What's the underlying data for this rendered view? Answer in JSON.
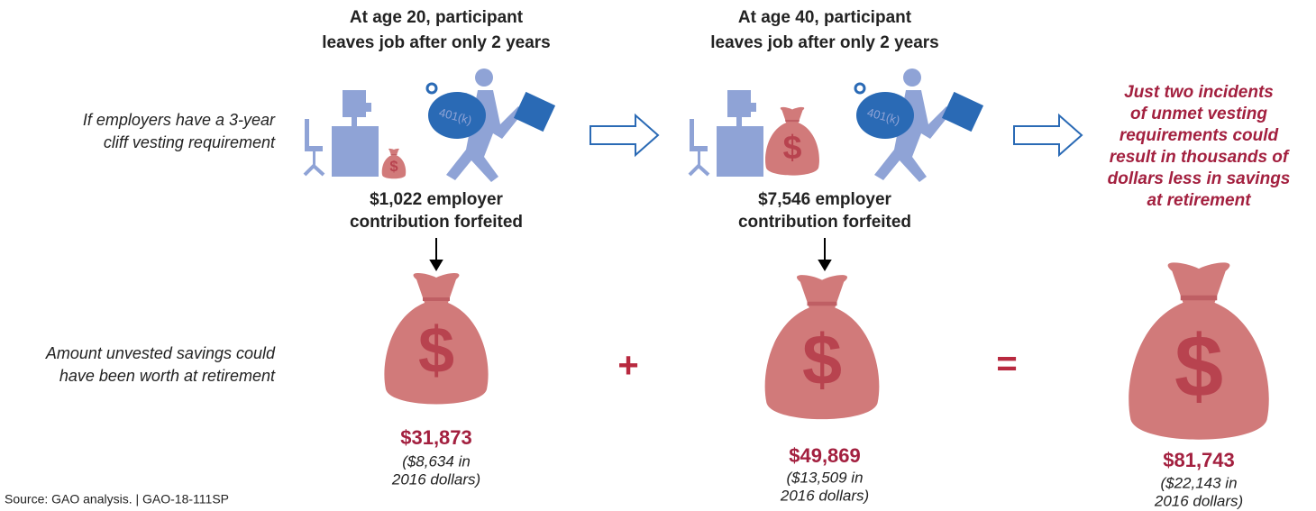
{
  "scenarios": [
    {
      "heading": [
        "At age 20, participant",
        "leaves job after only 2 years"
      ],
      "forfeited": [
        "$1,022 employer",
        "contribution forfeited"
      ],
      "worth": "$31,873",
      "worth_2016": [
        "($8,634 in",
        "2016 dollars)"
      ]
    },
    {
      "heading": [
        "At age 40, participant",
        "leaves job after only 2 years"
      ],
      "forfeited": [
        "$7,546 employer",
        "contribution forfeited"
      ],
      "worth": "$49,869",
      "worth_2016": [
        "($13,509 in",
        "2016 dollars)"
      ]
    }
  ],
  "row_labels": {
    "vesting": [
      "If employers have a 3-year",
      "cliff vesting requirement"
    ],
    "worth": [
      "Amount unvested savings could",
      "have been worth at retirement"
    ]
  },
  "operators": [
    "+",
    "="
  ],
  "conclusion": {
    "text": [
      "Just two incidents",
      "of unmet vesting",
      "requirements could",
      "result in thousands of",
      "dollars less in savings",
      "at retirement"
    ],
    "total": "$81,743",
    "total_2016": [
      "($22,143 in",
      "2016 dollars)"
    ]
  },
  "icons": {
    "bag_symbol": "$",
    "piggy_label": "401(k)"
  },
  "source": "Source: GAO analysis.  |  GAO-18-111SP"
}
